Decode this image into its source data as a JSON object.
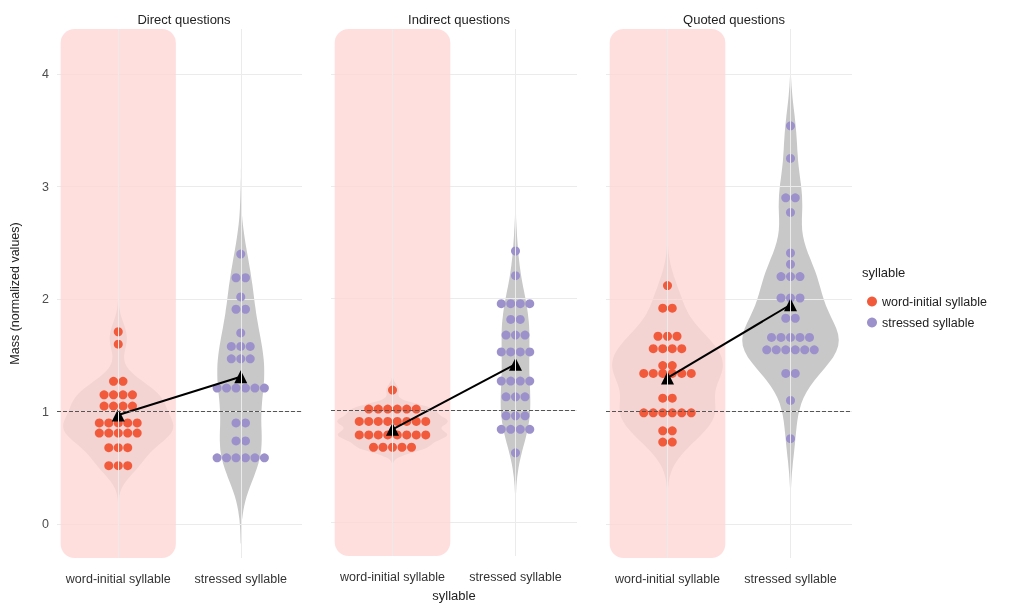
{
  "chart_data": [
    {
      "type": "scatter",
      "title": "Direct questions",
      "ylabel": "Mass (normalized values)",
      "categories": [
        "word-initial syllable",
        "stressed syllable"
      ],
      "ylim": [
        -0.3,
        4.4
      ],
      "yticks": [
        0,
        1,
        2,
        3,
        4
      ],
      "grid": true,
      "legend": false,
      "marker": "circle",
      "series": [
        {
          "color": "#f15a3a",
          "x": [
            "word-initial syllable",
            "word-initial syllable",
            "word-initial syllable",
            "word-initial syllable",
            "word-initial syllable",
            "word-initial syllable",
            "word-initial syllable",
            "word-initial syllable",
            "word-initial syllable",
            "word-initial syllable",
            "word-initial syllable",
            "word-initial syllable",
            "word-initial syllable",
            "word-initial syllable",
            "word-initial syllable",
            "word-initial syllable",
            "word-initial syllable",
            "word-initial syllable",
            "word-initial syllable",
            "word-initial syllable",
            "word-initial syllable",
            "word-initial syllable",
            "word-initial syllable",
            "word-initial syllable",
            "word-initial syllable",
            "word-initial syllable",
            "word-initial syllable",
            "word-initial syllable"
          ],
          "values": [
            1.71,
            1.6,
            1.27,
            1.27,
            1.15,
            1.15,
            1.15,
            1.15,
            1.05,
            1.05,
            1.05,
            1.05,
            0.9,
            0.9,
            0.9,
            0.9,
            0.9,
            0.81,
            0.81,
            0.81,
            0.81,
            0.81,
            0.68,
            0.68,
            0.68,
            0.52,
            0.52,
            0.52
          ]
        },
        {
          "color": "#9d91cc",
          "x": [
            "stressed syllable",
            "stressed syllable",
            "stressed syllable",
            "stressed syllable",
            "stressed syllable",
            "stressed syllable",
            "stressed syllable",
            "stressed syllable",
            "stressed syllable",
            "stressed syllable",
            "stressed syllable",
            "stressed syllable",
            "stressed syllable",
            "stressed syllable",
            "stressed syllable",
            "stressed syllable",
            "stressed syllable",
            "stressed syllable",
            "stressed syllable",
            "stressed syllable",
            "stressed syllable",
            "stressed syllable",
            "stressed syllable",
            "stressed syllable",
            "stressed syllable",
            "stressed syllable",
            "stressed syllable",
            "stressed syllable",
            "stressed syllable"
          ],
          "values": [
            2.4,
            2.19,
            2.19,
            2.02,
            1.91,
            1.91,
            1.7,
            1.58,
            1.58,
            1.58,
            1.47,
            1.47,
            1.47,
            1.21,
            1.21,
            1.21,
            1.21,
            1.21,
            1.21,
            0.9,
            0.9,
            0.74,
            0.74,
            0.59,
            0.59,
            0.59,
            0.59,
            0.59,
            0.59
          ]
        },
        {
          "type": "line",
          "color": "#000000",
          "marker": "triangle",
          "values": [
            0.97,
            1.31
          ]
        }
      ],
      "ref_lines": [
        {
          "axis": "y",
          "value": 1,
          "color": "#555555",
          "line_style": "dashed"
        }
      ],
      "bands": [
        {
          "axis": "x",
          "from": "word-initial syllable",
          "to": "word-initial syllable",
          "color": "#ffd6d6"
        }
      ]
    },
    {
      "type": "scatter",
      "title": "Indirect questions",
      "xlabel": "syllable",
      "categories": [
        "word-initial syllable",
        "stressed syllable"
      ],
      "ylim": [
        -0.3,
        4.4
      ],
      "yticks": [
        0,
        1,
        2,
        3,
        4
      ],
      "grid": true,
      "legend": false,
      "marker": "circle",
      "tick_labels": "x",
      "series": [
        {
          "color": "#f15a3a",
          "x": [
            "word-initial syllable",
            "word-initial syllable",
            "word-initial syllable",
            "word-initial syllable",
            "word-initial syllable",
            "word-initial syllable",
            "word-initial syllable",
            "word-initial syllable",
            "word-initial syllable",
            "word-initial syllable",
            "word-initial syllable",
            "word-initial syllable",
            "word-initial syllable",
            "word-initial syllable",
            "word-initial syllable",
            "word-initial syllable",
            "word-initial syllable",
            "word-initial syllable",
            "word-initial syllable",
            "word-initial syllable",
            "word-initial syllable",
            "word-initial syllable",
            "word-initial syllable",
            "word-initial syllable",
            "word-initial syllable",
            "word-initial syllable",
            "word-initial syllable",
            "word-initial syllable"
          ],
          "values": [
            1.18,
            1.01,
            1.01,
            1.01,
            1.01,
            1.01,
            1.01,
            0.9,
            0.9,
            0.9,
            0.9,
            0.9,
            0.9,
            0.9,
            0.9,
            0.78,
            0.78,
            0.78,
            0.78,
            0.78,
            0.78,
            0.78,
            0.78,
            0.67,
            0.67,
            0.67,
            0.67,
            0.67
          ]
        },
        {
          "color": "#9d91cc",
          "x": [
            "stressed syllable",
            "stressed syllable",
            "stressed syllable",
            "stressed syllable",
            "stressed syllable",
            "stressed syllable",
            "stressed syllable",
            "stressed syllable",
            "stressed syllable",
            "stressed syllable",
            "stressed syllable",
            "stressed syllable",
            "stressed syllable",
            "stressed syllable",
            "stressed syllable",
            "stressed syllable",
            "stressed syllable",
            "stressed syllable",
            "stressed syllable",
            "stressed syllable",
            "stressed syllable",
            "stressed syllable",
            "stressed syllable",
            "stressed syllable",
            "stressed syllable",
            "stressed syllable",
            "stressed syllable",
            "stressed syllable",
            "stressed syllable",
            "stressed syllable"
          ],
          "values": [
            2.42,
            2.2,
            1.95,
            1.95,
            1.95,
            1.95,
            1.81,
            1.81,
            1.67,
            1.67,
            1.67,
            1.52,
            1.52,
            1.52,
            1.52,
            1.26,
            1.26,
            1.26,
            1.26,
            1.12,
            1.12,
            1.12,
            0.95,
            0.95,
            0.95,
            0.83,
            0.83,
            0.83,
            0.83,
            0.62
          ]
        },
        {
          "type": "line",
          "color": "#000000",
          "marker": "triangle",
          "values": [
            0.83,
            1.41
          ]
        }
      ],
      "ref_lines": [
        {
          "axis": "y",
          "value": 1,
          "color": "#555555",
          "line_style": "dashed"
        }
      ],
      "bands": [
        {
          "axis": "x",
          "from": "word-initial syllable",
          "to": "word-initial syllable",
          "color": "#ffd6d6"
        }
      ]
    },
    {
      "type": "scatter",
      "title": "Quoted questions",
      "categories": [
        "word-initial syllable",
        "stressed syllable"
      ],
      "ylim": [
        -0.3,
        4.4
      ],
      "yticks": [
        0,
        1,
        2,
        3,
        4
      ],
      "grid": true,
      "legend": "right",
      "legend_title": "syllable",
      "marker": "circle",
      "tick_labels": "x",
      "series": [
        {
          "name": "word-initial syllable",
          "color": "#f15a3a",
          "x": [
            "word-initial syllable",
            "word-initial syllable",
            "word-initial syllable",
            "word-initial syllable",
            "word-initial syllable",
            "word-initial syllable",
            "word-initial syllable",
            "word-initial syllable",
            "word-initial syllable",
            "word-initial syllable",
            "word-initial syllable",
            "word-initial syllable",
            "word-initial syllable",
            "word-initial syllable",
            "word-initial syllable",
            "word-initial syllable",
            "word-initial syllable",
            "word-initial syllable",
            "word-initial syllable",
            "word-initial syllable",
            "word-initial syllable",
            "word-initial syllable",
            "word-initial syllable",
            "word-initial syllable",
            "word-initial syllable",
            "word-initial syllable",
            "word-initial syllable",
            "word-initial syllable",
            "word-initial syllable",
            "word-initial syllable"
          ],
          "values": [
            2.12,
            1.92,
            1.92,
            1.67,
            1.67,
            1.67,
            1.56,
            1.56,
            1.56,
            1.56,
            1.41,
            1.41,
            1.34,
            1.34,
            1.34,
            1.34,
            1.34,
            1.34,
            1.12,
            1.12,
            0.99,
            0.99,
            0.99,
            0.99,
            0.99,
            0.99,
            0.83,
            0.83,
            0.73,
            0.73
          ]
        },
        {
          "name": "stressed syllable",
          "color": "#9d91cc",
          "x": [
            "stressed syllable",
            "stressed syllable",
            "stressed syllable",
            "stressed syllable",
            "stressed syllable",
            "stressed syllable",
            "stressed syllable",
            "stressed syllable",
            "stressed syllable",
            "stressed syllable",
            "stressed syllable",
            "stressed syllable",
            "stressed syllable",
            "stressed syllable",
            "stressed syllable",
            "stressed syllable",
            "stressed syllable",
            "stressed syllable",
            "stressed syllable",
            "stressed syllable",
            "stressed syllable",
            "stressed syllable",
            "stressed syllable",
            "stressed syllable",
            "stressed syllable",
            "stressed syllable",
            "stressed syllable",
            "stressed syllable",
            "stressed syllable",
            "stressed syllable"
          ],
          "values": [
            3.54,
            3.25,
            2.9,
            2.9,
            2.77,
            2.41,
            2.31,
            2.2,
            2.2,
            2.2,
            2.01,
            2.01,
            2.01,
            1.83,
            1.83,
            1.66,
            1.66,
            1.66,
            1.66,
            1.66,
            1.55,
            1.55,
            1.55,
            1.55,
            1.55,
            1.55,
            1.34,
            1.34,
            1.1,
            0.76
          ]
        },
        {
          "type": "line",
          "color": "#000000",
          "marker": "triangle",
          "values": [
            1.3,
            1.95
          ]
        }
      ],
      "ref_lines": [
        {
          "axis": "y",
          "value": 1,
          "color": "#555555",
          "line_style": "dashed"
        }
      ],
      "bands": [
        {
          "axis": "x",
          "from": "word-initial syllable",
          "to": "word-initial syllable",
          "color": "#ffd6d6"
        }
      ]
    }
  ]
}
